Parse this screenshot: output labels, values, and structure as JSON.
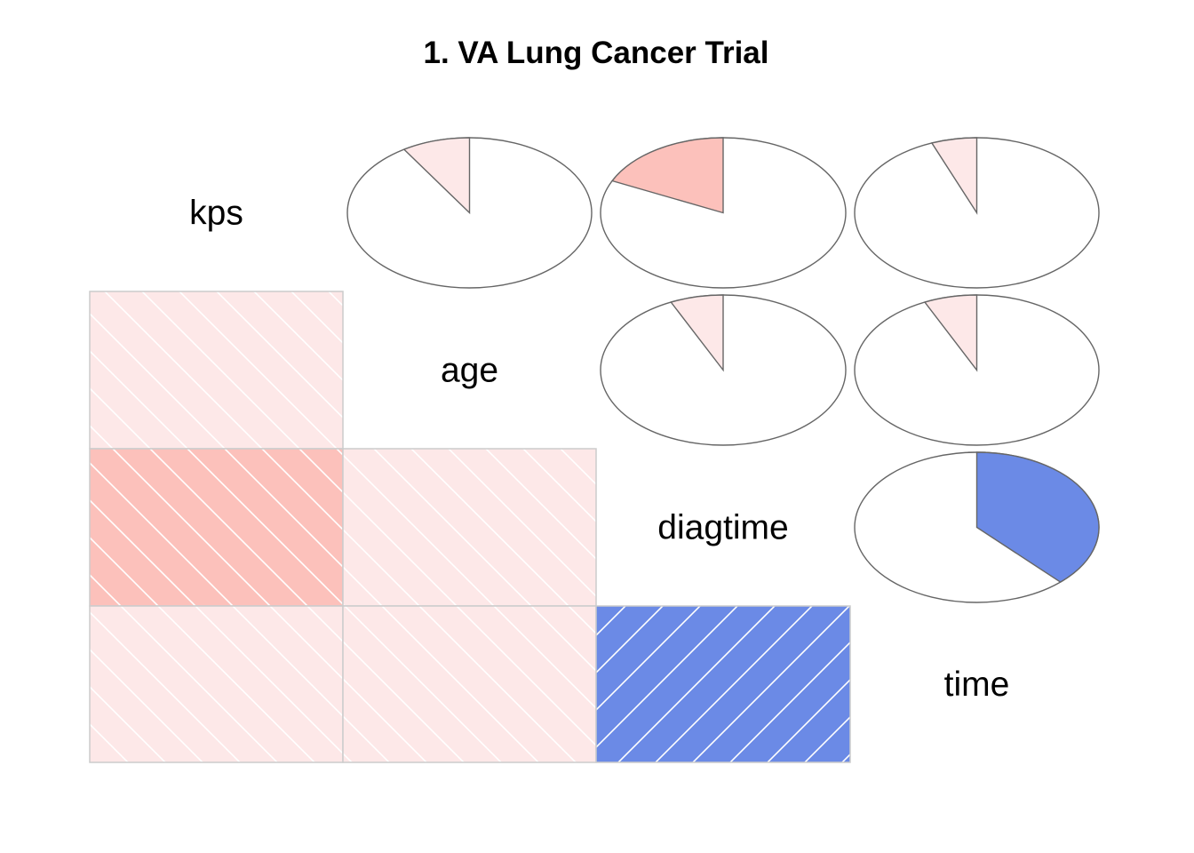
{
  "chart_data": {
    "type": "heatmap",
    "subtype": "correlogram",
    "title": "1. VA Lung Cancer Trial",
    "variables": [
      "kps",
      "age",
      "diagtime",
      "time"
    ],
    "lower_panel": "shade",
    "upper_panel": "pie",
    "diagonal_panel": "variable names",
    "correlations": [
      {
        "row": "age",
        "col": "kps",
        "r": 0.09
      },
      {
        "row": "diagtime",
        "col": "kps",
        "r": 0.18
      },
      {
        "row": "diagtime",
        "col": "age",
        "r": 0.07
      },
      {
        "row": "time",
        "col": "kps",
        "r": 0.06
      },
      {
        "row": "time",
        "col": "age",
        "r": 0.07
      },
      {
        "row": "time",
        "col": "diagtime",
        "r": -0.38
      }
    ],
    "colors": {
      "positive_weak": "#FDE8E8",
      "positive_moderate": "#FCC1BB",
      "negative_moderate": "#6B8AE6",
      "pie_outline": "#666666",
      "cell_border": "#cccccc",
      "hatch": "#ffffff"
    }
  }
}
